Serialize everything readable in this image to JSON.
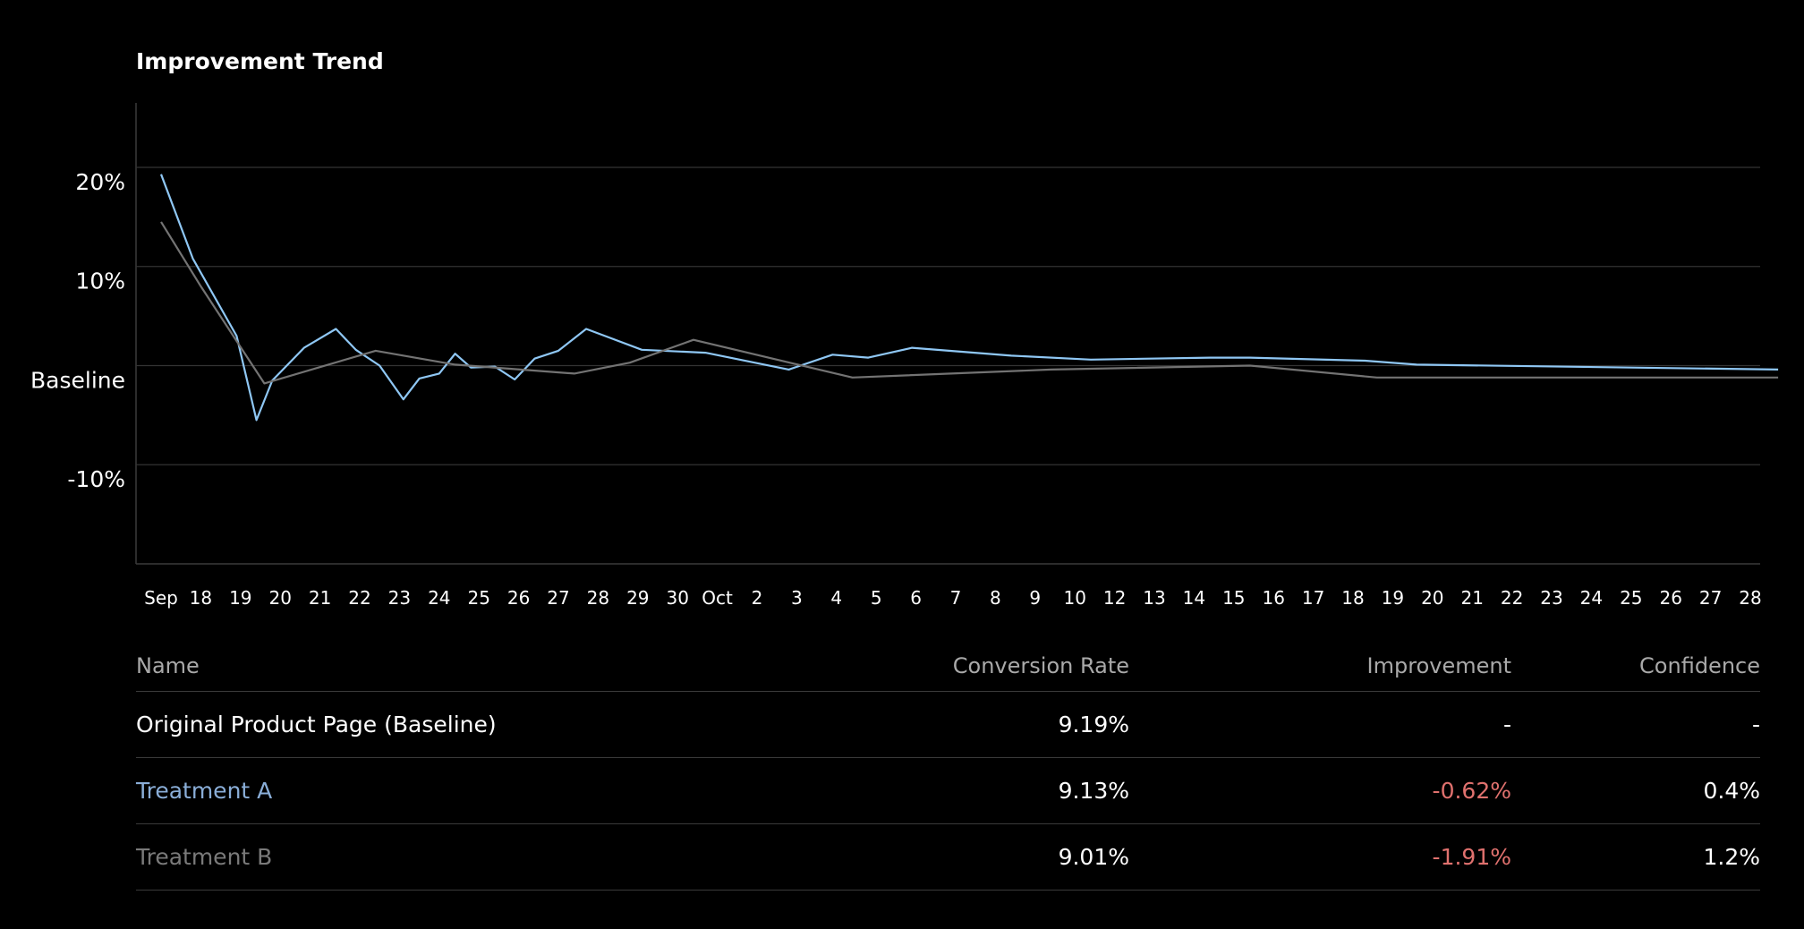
{
  "chart_data": {
    "type": "line",
    "title": "Improvement Trend",
    "y_ticks": [
      {
        "value": 20,
        "label": "20%"
      },
      {
        "value": 10,
        "label": "10%"
      },
      {
        "value": 0,
        "label": "Baseline"
      },
      {
        "value": -10,
        "label": "-10%"
      }
    ],
    "ylim": [
      -20,
      26.5
    ],
    "grid": true,
    "x_labels": [
      "Sep",
      "18",
      "19",
      "20",
      "21",
      "22",
      "23",
      "24",
      "25",
      "26",
      "27",
      "28",
      "29",
      "30",
      "Oct",
      "2",
      "3",
      "4",
      "5",
      "6",
      "7",
      "8",
      "9",
      "10",
      "12",
      "13",
      "14",
      "15",
      "16",
      "17",
      "18",
      "19",
      "20",
      "21",
      "22",
      "23",
      "24",
      "25",
      "26",
      "27",
      "28"
    ],
    "series": [
      {
        "color": "#8fc7f4",
        "points": [
          [
            0,
            19.3
          ],
          [
            0.8,
            10.8
          ],
          [
            1.9,
            3.0
          ],
          [
            2.4,
            -5.5
          ],
          [
            2.8,
            -1.5
          ],
          [
            3.6,
            1.8
          ],
          [
            4.4,
            3.7
          ],
          [
            4.9,
            1.6
          ],
          [
            5.5,
            0.0
          ],
          [
            6.1,
            -3.4
          ],
          [
            6.5,
            -1.3
          ],
          [
            7.0,
            -0.8
          ],
          [
            7.4,
            1.2
          ],
          [
            7.8,
            -0.2
          ],
          [
            8.4,
            -0.1
          ],
          [
            8.9,
            -1.4
          ],
          [
            9.4,
            0.7
          ],
          [
            10.0,
            1.5
          ],
          [
            10.7,
            3.7
          ],
          [
            12.1,
            1.6
          ],
          [
            13.7,
            1.3
          ],
          [
            15.8,
            -0.4
          ],
          [
            16.9,
            1.1
          ],
          [
            17.8,
            0.8
          ],
          [
            18.9,
            1.8
          ],
          [
            21.4,
            1.0
          ],
          [
            23.4,
            0.6
          ],
          [
            26.4,
            0.8
          ],
          [
            27.4,
            0.8
          ],
          [
            30.3,
            0.5
          ],
          [
            31.6,
            0.1
          ],
          [
            40.7,
            -0.4
          ]
        ]
      },
      {
        "color": "#737373",
        "points": [
          [
            0,
            14.5
          ],
          [
            1.0,
            8.0
          ],
          [
            2.6,
            -1.8
          ],
          [
            5.4,
            1.5
          ],
          [
            7.4,
            0.1
          ],
          [
            10.4,
            -0.8
          ],
          [
            11.8,
            0.3
          ],
          [
            13.4,
            2.6
          ],
          [
            17.4,
            -1.2
          ],
          [
            22.4,
            -0.4
          ],
          [
            27.4,
            0.0
          ],
          [
            30.6,
            -1.2
          ],
          [
            33.6,
            -1.2
          ],
          [
            36.6,
            -1.2
          ],
          [
            40.7,
            -1.2
          ]
        ]
      }
    ]
  },
  "table": {
    "headers": {
      "name": "Name",
      "conversion_rate": "Conversion Rate",
      "improvement": "Improvement",
      "confidence": "Confidence"
    },
    "rows": [
      {
        "name": "Original Product Page (Baseline)",
        "conversion_rate": "9.19%",
        "improvement": "-",
        "confidence": "-",
        "name_color": "#ffffff"
      },
      {
        "name": "Treatment A",
        "conversion_rate": "9.13%",
        "improvement": "-0.62%",
        "confidence": "0.4%",
        "name_color": "#8aaed8"
      },
      {
        "name": "Treatment B",
        "conversion_rate": "9.01%",
        "improvement": "-1.91%",
        "confidence": "1.2%",
        "name_color": "#7a7a7a"
      }
    ]
  }
}
